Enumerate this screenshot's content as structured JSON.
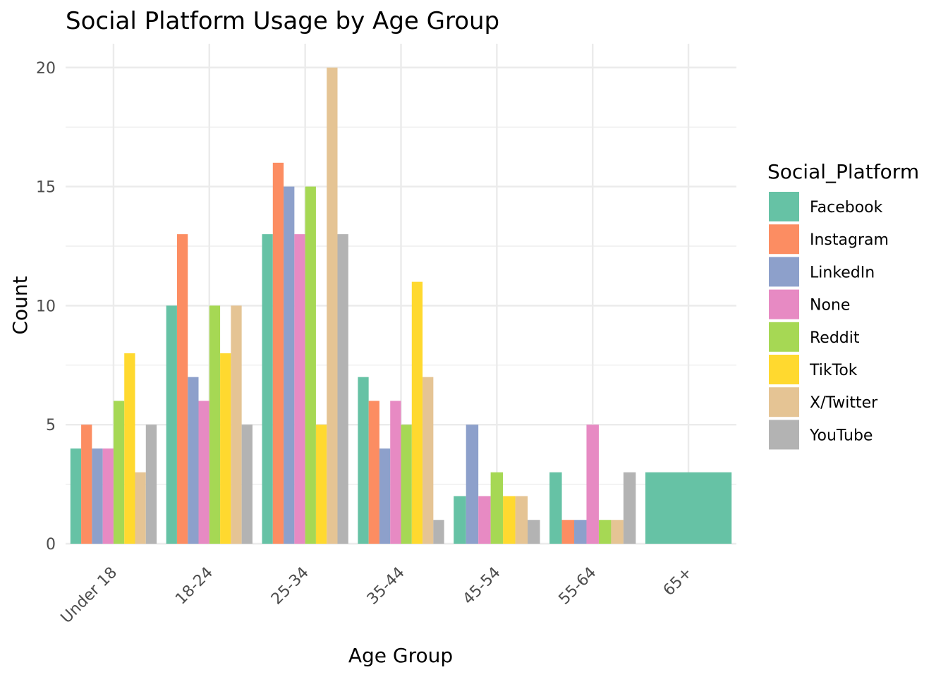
{
  "chart_data": {
    "type": "bar",
    "title": "Social Platform Usage by Age Group",
    "xlabel": "Age Group",
    "ylabel": "Count",
    "ylim": [
      0,
      21
    ],
    "y_ticks": [
      0,
      5,
      10,
      15,
      20
    ],
    "grid": true,
    "legend_title": "Social_Platform",
    "legend_position": "right",
    "categories": [
      "Under 18",
      "18-24",
      "25-34",
      "35-44",
      "45-54",
      "55-64",
      "65+"
    ],
    "series": [
      {
        "name": "Facebook",
        "color": "#66C2A5",
        "values": [
          4,
          10,
          13,
          7,
          2,
          3,
          3
        ]
      },
      {
        "name": "Instagram",
        "color": "#FC8D62",
        "values": [
          5,
          13,
          16,
          6,
          null,
          1,
          null
        ]
      },
      {
        "name": "LinkedIn",
        "color": "#8DA0CB",
        "values": [
          4,
          7,
          15,
          4,
          5,
          1,
          null
        ]
      },
      {
        "name": "None",
        "color": "#E78AC3",
        "values": [
          4,
          6,
          13,
          6,
          2,
          5,
          null
        ]
      },
      {
        "name": "Reddit",
        "color": "#A6D854",
        "values": [
          6,
          10,
          15,
          5,
          3,
          1,
          null
        ]
      },
      {
        "name": "TikTok",
        "color": "#FFD92F",
        "values": [
          8,
          8,
          5,
          11,
          2,
          null,
          null
        ]
      },
      {
        "name": "X/Twitter",
        "color": "#E5C494",
        "values": [
          3,
          10,
          20,
          7,
          2,
          1,
          null
        ]
      },
      {
        "name": "YouTube",
        "color": "#B3B3B3",
        "values": [
          5,
          5,
          13,
          1,
          1,
          3,
          null
        ]
      }
    ]
  }
}
